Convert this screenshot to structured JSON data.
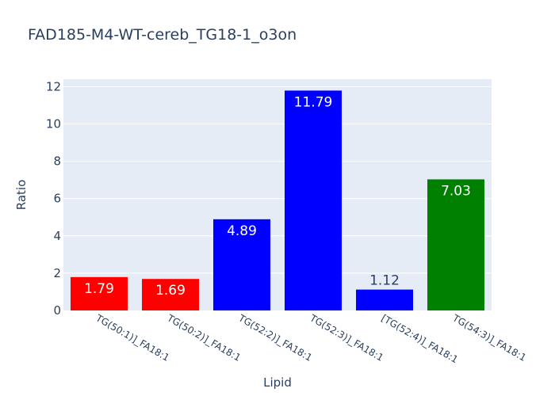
{
  "chart_data": {
    "type": "bar",
    "title": "FAD185-M4-WT-cereb_TG18-1_o3on",
    "xlabel": "Lipid",
    "ylabel": "Ratio",
    "ylim": [
      0,
      12.4
    ],
    "yticks": [
      0,
      2,
      4,
      6,
      8,
      10,
      12
    ],
    "grid": true,
    "categories": [
      "TG(50:1)]_FA18:1",
      "TG(50:2)]_FA18:1",
      "TG(52:2)]_FA18:1",
      "TG(52:3)]_FA18:1",
      "[TG(52:4)]_FA18:1",
      "TG(54:3)]_FA18:1"
    ],
    "values": [
      1.79,
      1.69,
      4.89,
      11.79,
      1.12,
      7.03
    ],
    "data_labels": [
      "1.79",
      "1.69",
      "4.89",
      "11.79",
      "1.12",
      "7.03"
    ],
    "colors": [
      "#ff0000",
      "#ff0000",
      "#0000ff",
      "#0000ff",
      "#0000ff",
      "#008000"
    ],
    "plot_background": "#e5ecf6",
    "grid_color": "#ffffff",
    "text_color": "#2a3f5f"
  }
}
